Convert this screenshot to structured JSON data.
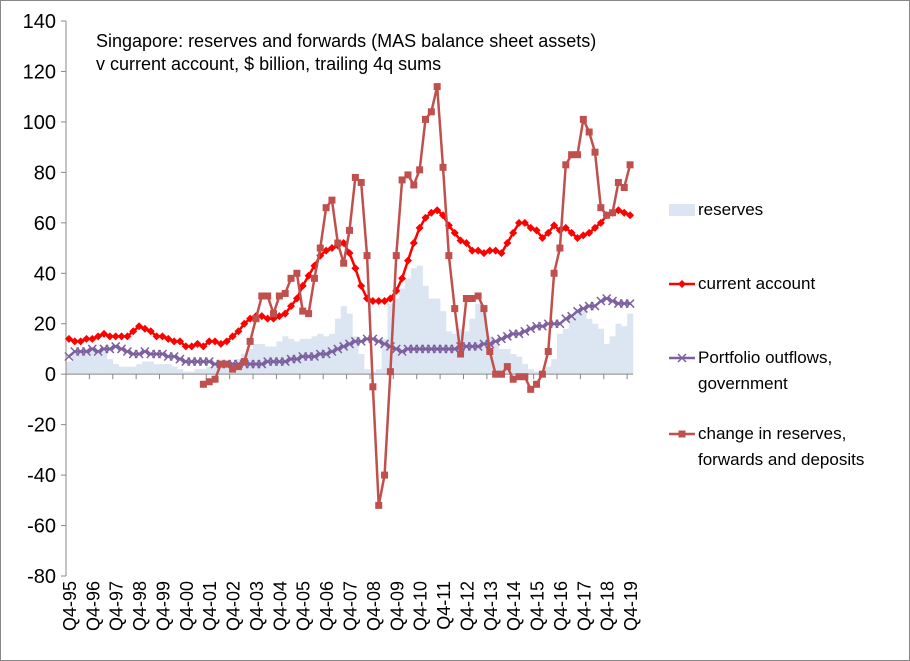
{
  "chart_data": {
    "type": "line",
    "title": "Singapore:  reserves  and forwards (MAS balance sheet assets)",
    "subtitle": "v current account, $ billion, trailing 4q sums",
    "categories": [
      "Q4-95",
      null,
      null,
      null,
      "Q4-96",
      null,
      null,
      null,
      "Q4-97",
      null,
      null,
      null,
      "Q4-98",
      null,
      null,
      null,
      "Q4-99",
      null,
      null,
      null,
      "Q4-00",
      null,
      null,
      null,
      "Q4-01",
      null,
      null,
      null,
      "Q4-02",
      null,
      null,
      null,
      "Q4-03",
      null,
      null,
      null,
      "Q4-04",
      null,
      null,
      null,
      "Q4-05",
      null,
      null,
      null,
      "Q4-06",
      null,
      null,
      null,
      "Q4-07",
      null,
      null,
      null,
      "Q4-08",
      null,
      null,
      null,
      "Q4-09",
      null,
      null,
      null,
      "Q4-10",
      null,
      null,
      null,
      "Q4-11",
      null,
      null,
      null,
      "Q4-12",
      null,
      null,
      null,
      "Q4-13",
      null,
      null,
      null,
      "Q4-14",
      null,
      null,
      null,
      "Q4-15",
      null,
      null,
      null,
      "Q4-16",
      null,
      null,
      null,
      "Q4-17",
      null,
      null,
      null,
      "Q4-18",
      null,
      null,
      null,
      "Q4-19"
    ],
    "ylim": [
      -80,
      140
    ],
    "yticks": [
      -80,
      -60,
      -40,
      -20,
      0,
      20,
      40,
      60,
      80,
      100,
      120,
      140
    ],
    "series": [
      {
        "name": "reserves",
        "type": "bar",
        "color": "#dce6f2",
        "values": [
          5,
          8,
          9,
          10,
          10,
          9,
          9,
          6,
          4,
          3,
          3,
          3,
          4,
          5,
          5,
          4,
          4,
          4,
          3,
          2,
          1,
          1,
          2,
          2,
          3,
          3,
          4,
          5,
          5,
          6,
          8,
          10,
          12,
          12,
          11,
          11,
          13,
          15,
          14,
          13,
          14,
          14,
          15,
          16,
          15,
          16,
          22,
          27,
          24,
          15,
          8,
          2,
          1,
          2,
          14,
          28,
          30,
          34,
          38,
          42,
          43,
          35,
          30,
          30,
          25,
          17,
          16,
          18,
          17,
          22,
          28,
          26,
          15,
          12,
          10,
          10,
          8,
          7,
          4,
          2,
          1,
          1,
          3,
          6,
          16,
          18,
          22,
          26,
          25,
          22,
          20,
          18,
          12,
          15,
          20,
          19,
          24
        ]
      },
      {
        "name": "current account",
        "type": "line",
        "marker": "diamond",
        "color": "#ff0000",
        "values": [
          14,
          13,
          13,
          14,
          14,
          15,
          16,
          15,
          15,
          15,
          15,
          17,
          19,
          18,
          17,
          15,
          15,
          14,
          13,
          13,
          11,
          11,
          12,
          11,
          13,
          13,
          12,
          13,
          15,
          17,
          20,
          22,
          23,
          23,
          22,
          22,
          23,
          24,
          27,
          30,
          35,
          39,
          43,
          47,
          49,
          50,
          51,
          52,
          48,
          42,
          35,
          30,
          29,
          29,
          29,
          30,
          33,
          38,
          45,
          52,
          58,
          62,
          64,
          65,
          63,
          59,
          56,
          53,
          52,
          49,
          49,
          48,
          49,
          49,
          48,
          52,
          56,
          60,
          60,
          58,
          57,
          54,
          56,
          59,
          57,
          58,
          56,
          54,
          55,
          56,
          58,
          60,
          63,
          64,
          65,
          64,
          63
        ]
      },
      {
        "name": "Portfolio outflows, government",
        "type": "line",
        "marker": "cross",
        "color": "#7d60a0",
        "values": [
          7,
          9,
          9,
          9,
          10,
          9,
          10,
          10,
          11,
          10,
          9,
          8,
          8,
          9,
          8,
          8,
          8,
          7,
          7,
          6,
          5,
          5,
          5,
          5,
          5,
          4,
          4,
          4,
          4,
          4,
          4,
          4,
          4,
          4,
          5,
          5,
          5,
          5,
          6,
          6,
          7,
          7,
          7,
          8,
          8,
          9,
          10,
          11,
          12,
          13,
          13,
          14,
          14,
          13,
          12,
          11,
          10,
          9,
          10,
          10,
          10,
          10,
          10,
          10,
          10,
          10,
          10,
          11,
          11,
          11,
          11,
          12,
          12,
          13,
          14,
          15,
          16,
          16,
          17,
          18,
          19,
          19,
          20,
          20,
          20,
          22,
          23,
          25,
          26,
          27,
          27,
          29,
          30,
          29,
          28,
          28,
          28
        ]
      },
      {
        "name": "change in reserves, forwards and deposits",
        "type": "line",
        "marker": "square",
        "color": "#c0504d",
        "values": [
          null,
          null,
          null,
          null,
          null,
          null,
          null,
          null,
          null,
          null,
          null,
          null,
          null,
          null,
          null,
          null,
          null,
          null,
          null,
          null,
          null,
          null,
          null,
          -4,
          -3,
          -2,
          4,
          4,
          2,
          3,
          5,
          13,
          22,
          31,
          31,
          24,
          31,
          32,
          38,
          40,
          25,
          24,
          38,
          50,
          66,
          69,
          52,
          44,
          57,
          78,
          76,
          47,
          -5,
          -52,
          -40,
          1,
          47,
          77,
          79,
          75,
          81,
          101,
          104,
          114,
          82,
          47,
          26,
          8,
          30,
          30,
          31,
          26,
          9,
          0,
          0,
          3,
          -2,
          -1,
          -1,
          -6,
          -4,
          0,
          9,
          40,
          50,
          83,
          87,
          87,
          101,
          96,
          88,
          66,
          63,
          64,
          76,
          74,
          83
        ]
      }
    ]
  }
}
